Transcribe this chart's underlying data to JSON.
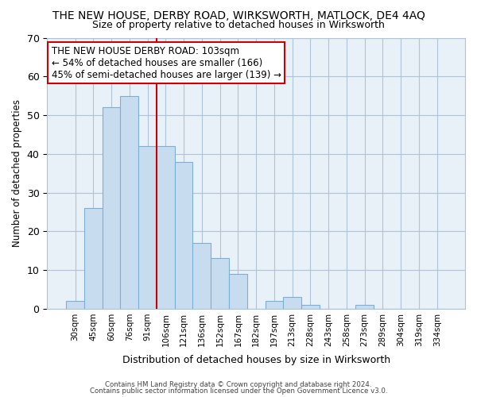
{
  "title": "THE NEW HOUSE, DERBY ROAD, WIRKSWORTH, MATLOCK, DE4 4AQ",
  "subtitle": "Size of property relative to detached houses in Wirksworth",
  "xlabel": "Distribution of detached houses by size in Wirksworth",
  "ylabel": "Number of detached properties",
  "bar_labels": [
    "30sqm",
    "45sqm",
    "60sqm",
    "76sqm",
    "91sqm",
    "106sqm",
    "121sqm",
    "136sqm",
    "152sqm",
    "167sqm",
    "182sqm",
    "197sqm",
    "213sqm",
    "228sqm",
    "243sqm",
    "258sqm",
    "273sqm",
    "289sqm",
    "304sqm",
    "319sqm",
    "334sqm"
  ],
  "bar_values": [
    2,
    26,
    52,
    55,
    42,
    42,
    38,
    17,
    13,
    9,
    0,
    2,
    3,
    1,
    0,
    0,
    1,
    0,
    0,
    0,
    0
  ],
  "bar_color": "#c8dcf0",
  "bar_edge_color": "#7bafd4",
  "plot_bg_color": "#e8f0f8",
  "ylim": [
    0,
    70
  ],
  "yticks": [
    0,
    10,
    20,
    30,
    40,
    50,
    60,
    70
  ],
  "vline_x_idx": 5,
  "vline_color": "#cc0000",
  "annotation_text_line1": "THE NEW HOUSE DERBY ROAD: 103sqm",
  "annotation_text_line2": "← 54% of detached houses are smaller (166)",
  "annotation_text_line3": "45% of semi-detached houses are larger (139) →",
  "footer1": "Contains HM Land Registry data © Crown copyright and database right 2024.",
  "footer2": "Contains public sector information licensed under the Open Government Licence v3.0.",
  "background_color": "#ffffff",
  "grid_color": "#b0c4d8"
}
